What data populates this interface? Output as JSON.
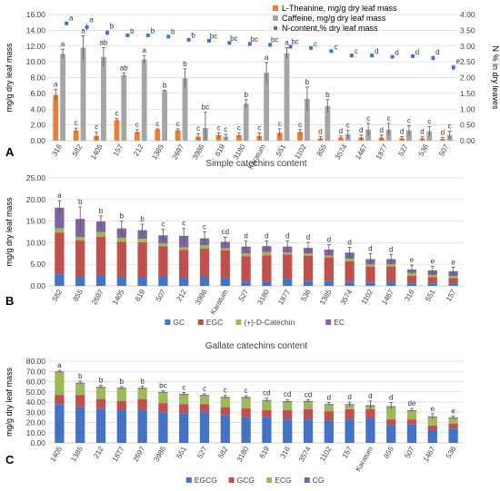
{
  "chart_data": [
    {
      "type": "bar",
      "panel_label": "A",
      "title": "",
      "categories": [
        "316",
        "582",
        "1405",
        "157",
        "212",
        "1385",
        "2697",
        "3986",
        "619",
        "3180",
        "Karatum",
        "551",
        "1102",
        "855",
        "3574",
        "1467",
        "1877",
        "527",
        "536",
        "507"
      ],
      "ylabel": "mg/g dry leaf mass",
      "ylabel2": "N % in dry leaves",
      "ylim": [
        0,
        16
      ],
      "yticks": [
        "0.00",
        "2.00",
        "4.00",
        "6.00",
        "8.00",
        "10.00",
        "12.00",
        "14.00",
        "16.00"
      ],
      "ylim2": [
        0,
        4
      ],
      "yticks2": [
        "0.00",
        "0.50",
        "1.00",
        "1.50",
        "2.00",
        "2.50",
        "3.00",
        "3.50",
        "4.00"
      ],
      "legend_position": "top-right",
      "series": [
        {
          "name": "L-Theanine, mg/g dry leaf mass",
          "kind": "bar",
          "color": "#ED7D31",
          "values": [
            5.8,
            1.3,
            0.6,
            2.6,
            1.1,
            1.4,
            1.3,
            0.5,
            0.7,
            0.7,
            0.6,
            1.0,
            1.1,
            0.3,
            0.4,
            0.4,
            0.4,
            0.3,
            0.3,
            0.2
          ],
          "err": [
            0.7,
            0.3,
            0.5,
            0.2,
            0.3,
            0.1,
            0.2,
            0.4,
            0.3,
            0.3,
            0.4,
            0.5,
            0.3,
            0.2,
            0.2,
            0.3,
            0.3,
            0.2,
            0.2,
            0.2
          ],
          "letters": [
            "a",
            "c",
            "c",
            "c",
            "c",
            "c",
            "c",
            "c",
            "c",
            "c",
            "c",
            "c",
            "c",
            "d",
            "d",
            "d",
            "d",
            "d",
            "d",
            "d"
          ]
        },
        {
          "name": "Caffeine, mg/g dry leaf mass",
          "kind": "bar",
          "color": "#A5A5A5",
          "values": [
            11.0,
            11.8,
            10.6,
            8.3,
            10.3,
            6.3,
            7.9,
            1.6,
            0.5,
            4.7,
            8.6,
            11.1,
            5.3,
            4.4,
            0.8,
            1.4,
            1.4,
            1.3,
            1.2,
            0.7
          ],
          "err": [
            0.6,
            1.5,
            1.2,
            0.3,
            0.5,
            0.1,
            1.2,
            2.0,
            0.3,
            0.5,
            1.3,
            0.7,
            1.5,
            0.8,
            0.5,
            0.8,
            0.8,
            0.6,
            0.6,
            0.5
          ],
          "letters": [
            "a",
            "a",
            "ab",
            "ab",
            "a",
            "b",
            "b",
            "bc",
            "c",
            "b",
            "a",
            "a",
            "b",
            "b",
            "c",
            "c",
            "c",
            "c",
            "c",
            "c"
          ]
        },
        {
          "name": "N-content,% dry leaf mass",
          "kind": "point",
          "axis": "right",
          "color": "#4472C4",
          "values": [
            3.72,
            3.6,
            3.42,
            3.34,
            3.34,
            3.3,
            3.2,
            3.17,
            3.1,
            3.07,
            3.04,
            2.98,
            2.94,
            2.84,
            2.7,
            2.7,
            2.66,
            2.68,
            2.62,
            2.32
          ],
          "err": [
            0.06,
            0.12,
            0.1,
            0.03,
            0.04,
            0.05,
            0.04,
            0.04,
            0.04,
            0.04,
            0.06,
            0.05,
            0.03,
            0.03,
            0.03,
            0.03,
            0.03,
            0.03,
            0.08,
            0.1
          ],
          "letters": [
            "a",
            "a",
            "b",
            "b",
            "b",
            "b",
            "b",
            "bc",
            "bc",
            "bc",
            "bc",
            "bc",
            "c",
            "c",
            "c",
            "d",
            "d",
            "d",
            "d",
            "e"
          ]
        }
      ]
    },
    {
      "type": "bar",
      "stacked": true,
      "panel_label": "B",
      "title": "Simple catechins content",
      "categories": [
        "582",
        "855",
        "2697",
        "1405",
        "619",
        "507",
        "212",
        "3986",
        "Karatum",
        "527",
        "3180",
        "1877",
        "536",
        "1385",
        "3574",
        "1102",
        "1467",
        "316",
        "551",
        "157"
      ],
      "ylabel": "mg/g dry leaf mass",
      "ylim": [
        0,
        25
      ],
      "yticks": [
        "0.00",
        "5.00",
        "10.00",
        "15.00",
        "20.00",
        "25.00"
      ],
      "legend_position": "bottom",
      "series": [
        {
          "name": "GC",
          "color": "#4472C4",
          "values": [
            2.7,
            2.0,
            2.4,
            2.0,
            1.9,
            2.1,
            1.8,
            2.0,
            1.8,
            1.0,
            1.0,
            1.6,
            1.1,
            1.1,
            0.9,
            0.8,
            0.9,
            0.6,
            0.6,
            0.5
          ]
        },
        {
          "name": "EGC",
          "color": "#C0504D",
          "values": [
            9.6,
            8.5,
            9.0,
            8.2,
            8.2,
            7.1,
            6.5,
            6.6,
            6.4,
            5.9,
            6.1,
            5.7,
            5.9,
            5.5,
            4.8,
            3.7,
            3.6,
            1.7,
            1.4,
            1.3
          ]
        },
        {
          "name": "(+)-D-Catechin",
          "color": "#9BBB59",
          "values": [
            1.0,
            0.8,
            1.1,
            0.9,
            0.8,
            0.6,
            0.6,
            0.8,
            0.5,
            0.6,
            0.7,
            0.4,
            0.5,
            0.4,
            0.6,
            0.5,
            0.5,
            0.7,
            0.5,
            0.5
          ]
        },
        {
          "name": "EC",
          "color": "#8064A2",
          "values": [
            4.8,
            4.2,
            2.4,
            2.2,
            2.0,
            1.9,
            2.7,
            1.6,
            1.5,
            1.6,
            1.4,
            1.4,
            1.3,
            1.4,
            1.4,
            1.2,
            1.2,
            0.8,
            1.1,
            1.1
          ]
        }
      ],
      "totals_err": [
        1.6,
        2.8,
        1.3,
        1.7,
        1.4,
        1.4,
        1.7,
        1.5,
        1.1,
        1.3,
        1.2,
        1.3,
        1.3,
        1.2,
        1.2,
        1.3,
        1.1,
        1.0,
        0.9,
        0.9
      ],
      "letters": [
        "a",
        "b",
        "b",
        "b",
        "b",
        "c",
        "c",
        "c",
        "cd",
        "d",
        "d",
        "d",
        "d",
        "d",
        "d",
        "d",
        "d",
        "e",
        "e",
        "e"
      ]
    },
    {
      "type": "bar",
      "stacked": true,
      "panel_label": "C",
      "title": "Gallate catechins content",
      "categories": [
        "1405",
        "1385",
        "212",
        "1877",
        "2697",
        "3986",
        "551",
        "527",
        "582",
        "3180",
        "619",
        "316",
        "3574",
        "1102",
        "157",
        "Karatum",
        "855",
        "507",
        "1467",
        "536"
      ],
      "ylabel": "mg/g dry leaf mass",
      "ylim": [
        0,
        80
      ],
      "yticks": [
        "0.00",
        "10.00",
        "20.00",
        "30.00",
        "40.00",
        "50.00",
        "60.00",
        "70.00",
        "80.00"
      ],
      "legend_position": "bottom",
      "series": [
        {
          "name": "EGCG",
          "color": "#4472C4",
          "values": [
            38,
            35,
            33,
            32,
            32,
            30,
            29,
            30,
            27,
            25,
            25,
            23,
            23,
            22,
            23,
            24,
            17,
            18,
            12,
            14
          ]
        },
        {
          "name": "GCG",
          "color": "#C0504D",
          "values": [
            9,
            12,
            10,
            9,
            11,
            9,
            9,
            8,
            8,
            9,
            7,
            9,
            10,
            9,
            10,
            9,
            6,
            5,
            5,
            5
          ]
        },
        {
          "name": "ECG",
          "color": "#9BBB59",
          "values": [
            22,
            11,
            11,
            12,
            10,
            10,
            9,
            8,
            9,
            10,
            9,
            8,
            7,
            6,
            4,
            3,
            12,
            8,
            8,
            5
          ]
        },
        {
          "name": "CG",
          "color": "#8064A2",
          "values": [
            1,
            1,
            1,
            1,
            1,
            1,
            1,
            1,
            1,
            1,
            1,
            1,
            1,
            1,
            1,
            1,
            1,
            1,
            1,
            1
          ]
        }
      ],
      "totals_err": [
        1.0,
        1.5,
        1.4,
        1.2,
        1.6,
        1.0,
        1.3,
        1.0,
        1.5,
        1.2,
        1.8,
        1.5,
        1.3,
        1.5,
        2.0,
        4.0,
        3.5,
        1.8,
        2.5,
        1.3
      ],
      "letters": [
        "a",
        "b",
        "b",
        "b",
        "b",
        "bc",
        "c",
        "c",
        "c",
        "c",
        "cd",
        "cd",
        "cd",
        "d",
        "d",
        "d",
        "d",
        "de",
        "e",
        "e"
      ]
    }
  ]
}
